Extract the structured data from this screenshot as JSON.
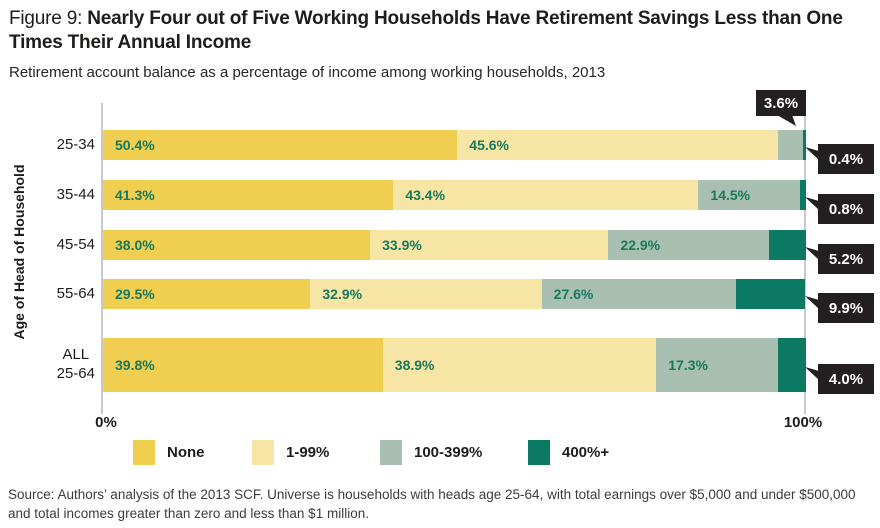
{
  "header": {
    "figure_label": "Figure 9: ",
    "title": "Nearly Four out of Five Working Households Have Retirement Savings Less than One Times Their Annual Income",
    "subtitle": "Retirement account balance as a percentage of income among working households, 2013"
  },
  "chart_data": {
    "type": "bar",
    "orientation": "horizontal",
    "stacked": true,
    "ylabel": "Age of Head of Household",
    "xlabel": "",
    "xlim": [
      0,
      100
    ],
    "x_tick_labels": [
      "0%",
      "100%"
    ],
    "grid": false,
    "legend_position": "bottom",
    "categories": [
      "25-34",
      "35-44",
      "45-54",
      "55-64",
      "ALL\n25-64"
    ],
    "series": [
      {
        "name": "None",
        "color": "#F0CE4F",
        "values": [
          50.4,
          41.3,
          38.0,
          29.5,
          39.8
        ]
      },
      {
        "name": "1-99%",
        "color": "#F7E5A5",
        "values": [
          45.6,
          43.4,
          33.9,
          32.9,
          38.9
        ]
      },
      {
        "name": "100-399%",
        "color": "#A9BFB1",
        "values": [
          3.6,
          14.5,
          22.9,
          27.6,
          17.3
        ]
      },
      {
        "name": "400%+",
        "color": "#0C7A63",
        "values": [
          0.4,
          0.8,
          5.2,
          9.9,
          4.0
        ]
      }
    ],
    "annotations": {
      "top_callout": "3.6%",
      "right_callouts": [
        "0.4%",
        "0.8%",
        "5.2%",
        "9.9%",
        "4.0%"
      ]
    }
  },
  "colors": {
    "label_text": "#17795E",
    "callout_bg": "#231F20",
    "callout_text": "#FFFFFF",
    "axis_line": "#C9C9C9",
    "text": "#1D1D1B"
  },
  "footer": {
    "source": "Source: Authors’ analysis of the 2013 SCF. Universe is households with heads age 25-64, with total earnings over $5,000 and under $500,000 and total incomes greater than zero and less than $1 million."
  }
}
